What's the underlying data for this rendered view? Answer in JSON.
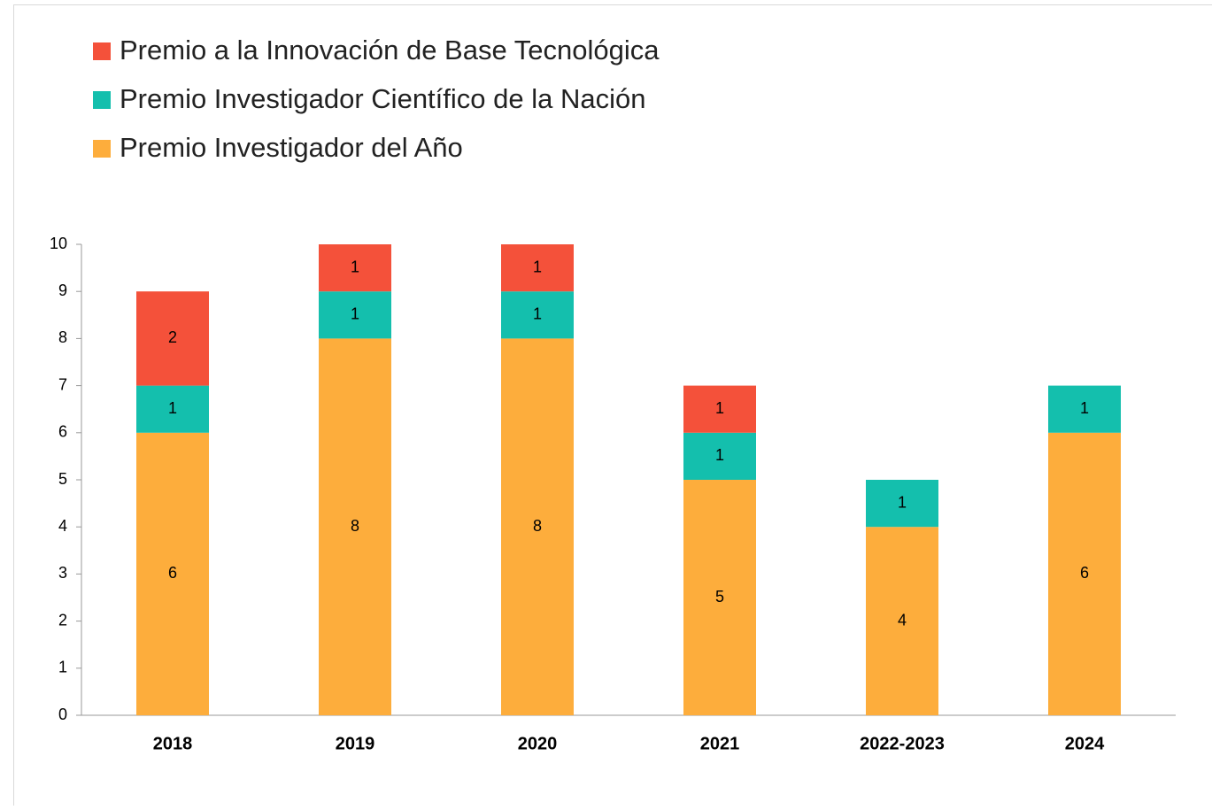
{
  "chart_data": {
    "type": "stacked_bar",
    "categories": [
      "2018",
      "2019",
      "2020",
      "2021",
      "2022-2023",
      "2024"
    ],
    "series": [
      {
        "name": "Premio a la Innovación de Base Tecnológica",
        "color": "#f4513a",
        "values": [
          2,
          1,
          1,
          1,
          null,
          null
        ]
      },
      {
        "name": "Premio Investigador Científico de la Nación",
        "color": "#14bfad",
        "values": [
          1,
          1,
          1,
          1,
          1,
          1
        ]
      },
      {
        "name": "Premio Investigador del Año",
        "color": "#fdad3c",
        "values": [
          6,
          8,
          8,
          5,
          4,
          6
        ]
      }
    ],
    "ylim": [
      0,
      10
    ],
    "yticks": [
      0,
      1,
      2,
      3,
      4,
      5,
      6,
      7,
      8,
      9,
      10
    ],
    "grid": false,
    "legend": "top-left"
  }
}
